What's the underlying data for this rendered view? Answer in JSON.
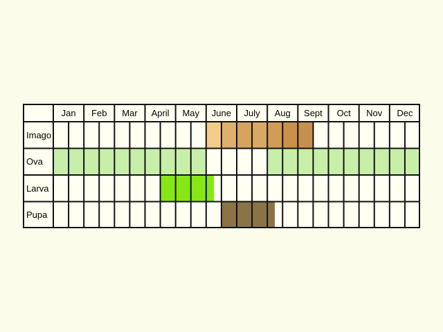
{
  "months": [
    "Jan",
    "Feb",
    "Mar",
    "April",
    "May",
    "June",
    "July",
    "Aug",
    "Sept",
    "Oct",
    "Nov",
    "Dec"
  ],
  "rows": [
    {
      "label": "Imago",
      "fills": [
        {
          "start": 10,
          "end": 11,
          "color": "#f2cc8a"
        },
        {
          "start": 11,
          "end": 12,
          "color": "#ddb16d"
        },
        {
          "start": 12,
          "end": 13,
          "color": "#d6a45c"
        },
        {
          "start": 13,
          "end": 14,
          "color": "#d9a864"
        },
        {
          "start": 14,
          "end": 15,
          "color": "#d19c55"
        },
        {
          "start": 15,
          "end": 16,
          "color": "#c99149"
        },
        {
          "start": 16,
          "end": 17,
          "color": "#c79050"
        }
      ]
    },
    {
      "label": "Ova",
      "fills": [
        {
          "start": 0,
          "end": 10,
          "color": "#c8efaa"
        },
        {
          "start": 14,
          "end": 24,
          "color": "#c8efaa"
        }
      ]
    },
    {
      "label": "Larva",
      "fills": [
        {
          "start": 7,
          "end": 10.5,
          "color": "#86e616"
        }
      ]
    },
    {
      "label": "Pupa",
      "fills": [
        {
          "start": 11,
          "end": 14.5,
          "color": "#8a7447"
        }
      ]
    }
  ],
  "colors": {
    "background": "#fcfcea",
    "cell": "#fffff2",
    "grid": "#111111"
  }
}
